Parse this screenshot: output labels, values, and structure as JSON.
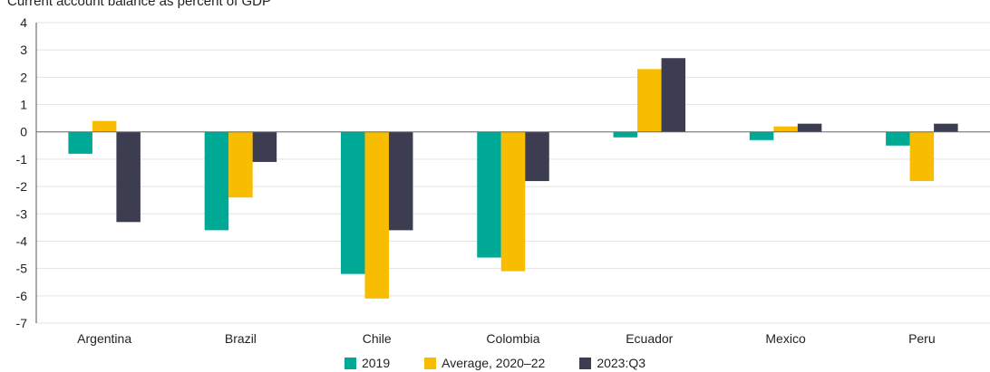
{
  "chart_data": {
    "type": "bar",
    "title": "Current account balance as percent of GDP",
    "xlabel": "",
    "ylabel": "",
    "categories": [
      "Argentina",
      "Brazil",
      "Chile",
      "Colombia",
      "Ecuador",
      "Mexico",
      "Peru"
    ],
    "series": [
      {
        "name": "2019",
        "color": "#00a896",
        "values": [
          -0.8,
          -3.6,
          -5.2,
          -4.6,
          -0.2,
          -0.3,
          -0.5
        ]
      },
      {
        "name": "Average, 2020–22",
        "color": "#f8bc00",
        "values": [
          0.4,
          -2.4,
          -6.1,
          -5.1,
          2.3,
          0.2,
          -1.8
        ]
      },
      {
        "name": "2023:Q3",
        "color": "#3d3d52",
        "values": [
          -3.3,
          -1.1,
          -3.6,
          -1.8,
          2.7,
          0.3,
          0.3
        ]
      }
    ],
    "ylim": [
      -7,
      4
    ],
    "yticks": [
      "4",
      "3",
      "2",
      "1",
      "0",
      "-1",
      "-2",
      "-3",
      "-4",
      "-5",
      "-6",
      "-7"
    ],
    "grid": true,
    "legend_position": "bottom-center"
  }
}
